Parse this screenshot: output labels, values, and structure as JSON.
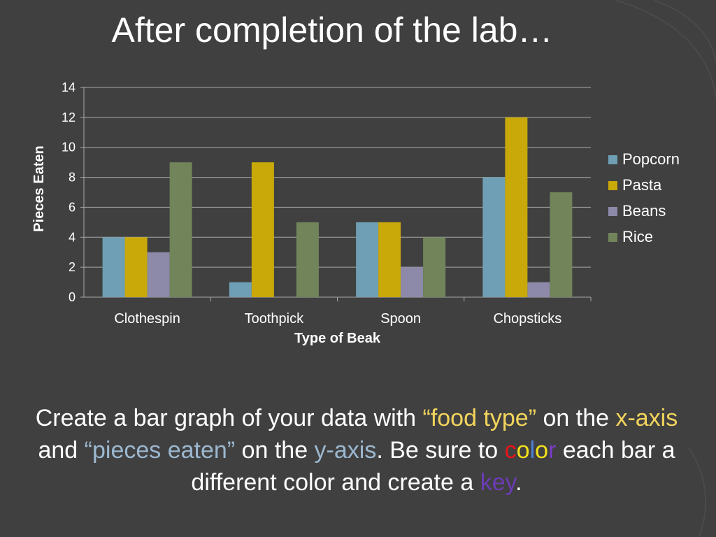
{
  "slide": {
    "title": "After completion of the lab…"
  },
  "chart_data": {
    "type": "bar",
    "categories": [
      "Clothespin",
      "Toothpick",
      "Spoon",
      "Chopsticks"
    ],
    "series": [
      {
        "name": "Popcorn",
        "values": [
          4,
          1,
          5,
          8
        ],
        "color": "#6f9fb4"
      },
      {
        "name": "Pasta",
        "values": [
          4,
          9,
          5,
          12
        ],
        "color": "#c9a80a"
      },
      {
        "name": "Beans",
        "values": [
          3,
          0,
          2,
          1
        ],
        "color": "#8c8aa8"
      },
      {
        "name": "Rice",
        "values": [
          9,
          5,
          4,
          7
        ],
        "color": "#71845a"
      }
    ],
    "xlabel": "Type of Beak",
    "ylabel": "Pieces Eaten",
    "ylim": [
      0,
      14
    ],
    "yticks": [
      0,
      2,
      4,
      6,
      8,
      10,
      12,
      14
    ],
    "grid": true,
    "legend_position": "right"
  },
  "instructions": {
    "p1": "Create a bar graph of your data with ",
    "food_type": "“food type”",
    "p2": " on the ",
    "x_axis": "x-axis",
    "p3": " and ",
    "pieces_eaten": "“pieces eaten”",
    "p4": " on the ",
    "y_axis": "y-axis",
    "p5": ".  Be sure to ",
    "color_c": "c",
    "color_o1": "o",
    "color_l": "l",
    "color_o2": "o",
    "color_r": "r",
    "p6": " each bar a different color and create a ",
    "key": "key",
    "p7": "."
  }
}
